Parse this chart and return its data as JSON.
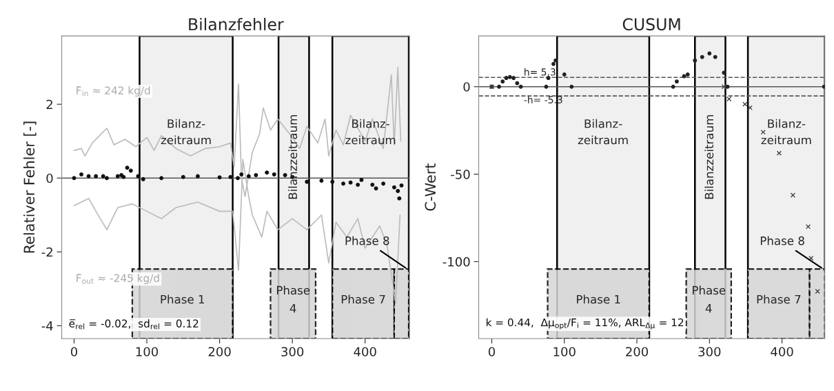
{
  "chart_data": [
    {
      "type": "scatter",
      "title": "Bilanzfehler",
      "ylabel": "Relativer Fehler [-]",
      "xlim": [
        -17,
        461
      ],
      "ylim": [
        -4.35,
        3.85
      ],
      "xticks": [
        0,
        100,
        200,
        300,
        400
      ],
      "yticks": [
        -4,
        -2,
        0,
        2
      ],
      "grid": false,
      "series": [
        {
          "type": "line",
          "color": "#bbbbbb",
          "x": [
            0,
            10,
            15,
            25,
            45,
            55,
            70,
            85,
            100,
            110,
            120,
            140,
            160,
            180,
            200,
            215,
            220,
            226,
            230,
            235,
            245,
            255,
            260,
            270,
            280,
            300,
            310,
            320,
            335,
            345,
            350,
            360,
            370,
            380,
            400,
            410,
            425,
            436,
            440,
            445,
            449
          ],
          "values": [
            0.75,
            0.8,
            0.6,
            0.95,
            1.35,
            0.9,
            1.05,
            0.85,
            1.1,
            0.75,
            1.15,
            0.8,
            0.6,
            0.8,
            0.85,
            0.95,
            0.3,
            2.55,
            0,
            -0.5,
            0.7,
            1.2,
            1.9,
            1.3,
            1.6,
            1.1,
            0.8,
            1.4,
            0.95,
            1.6,
            0.6,
            1.3,
            0.9,
            1.7,
            1.0,
            1.6,
            0.8,
            2.8,
            0.9,
            3.0,
            1.0
          ]
        },
        {
          "type": "line",
          "color": "#bbbbbb",
          "x": [
            0,
            20,
            30,
            45,
            60,
            80,
            100,
            120,
            140,
            170,
            200,
            218,
            226,
            232,
            240,
            245,
            258,
            265,
            280,
            300,
            320,
            340,
            350,
            360,
            375,
            390,
            400,
            420,
            430,
            442,
            448
          ],
          "values": [
            -0.75,
            -0.55,
            -0.9,
            -1.4,
            -0.8,
            -0.7,
            -0.9,
            -1.1,
            -0.8,
            -0.65,
            -0.9,
            -0.9,
            -2.5,
            0.5,
            -0.5,
            -1.0,
            -1.6,
            -0.9,
            -1.4,
            -1.1,
            -1.4,
            -1.0,
            -2.3,
            -1.2,
            -1.6,
            -1.1,
            -1.9,
            -1.3,
            -1.8,
            -3.4,
            -1.0
          ]
        },
        {
          "color": "#111111",
          "marker": "circle",
          "x": [
            0,
            10,
            20,
            30,
            40,
            45,
            60,
            65,
            68,
            73,
            78,
            88,
            95,
            120,
            150,
            170,
            200,
            215,
            225,
            230,
            240,
            250,
            265,
            275,
            290,
            300,
            320,
            340,
            355,
            370,
            380,
            390,
            395,
            410,
            415,
            425,
            440,
            445,
            447,
            450
          ],
          "values": [
            0,
            0.1,
            0.05,
            0.05,
            0.05,
            0,
            0.05,
            0.08,
            0.03,
            0.28,
            0.2,
            0.05,
            -0.03,
            0,
            0.03,
            0.05,
            0.02,
            0.03,
            0,
            0.1,
            0.05,
            0.08,
            0.15,
            0.1,
            0.08,
            0.03,
            -0.1,
            -0.07,
            -0.1,
            -0.15,
            -0.12,
            -0.18,
            -0.05,
            -0.18,
            -0.28,
            -0.15,
            -0.25,
            -0.35,
            -0.55,
            -0.2
          ]
        }
      ],
      "ref_lines": [
        {
          "axis": "y",
          "value": 0,
          "color": "#555555"
        }
      ],
      "bands": [
        {
          "axis": "x",
          "from": 90,
          "to": 218,
          "label": "Bilanz-\nzeitraum",
          "color": "#f0f0f0"
        },
        {
          "axis": "x",
          "from": 281,
          "to": 323,
          "label": "Bilanzzeitraum",
          "color": "#f0f0f0"
        },
        {
          "axis": "x",
          "from": 355,
          "to": 460,
          "label": "Bilanz-\nzeitraum",
          "color": "#f0f0f0"
        },
        {
          "axis": "x",
          "from": 80,
          "to": 218,
          "label": "Phase 1",
          "color": "#d6d6d6"
        },
        {
          "axis": "x",
          "from": 270,
          "to": 332,
          "label": "Phase\n4",
          "color": "#d6d6d6"
        },
        {
          "axis": "x",
          "from": 355,
          "to": 440,
          "label": "Phase 7",
          "color": "#d6d6d6"
        },
        {
          "axis": "x",
          "from": 440,
          "to": 460,
          "label": "Phase 8",
          "color": "#d6d6d6"
        }
      ],
      "annotations": [
        "F̄$_{in}$ ≈ 242 kg/d",
        "F̄$_{out}$ ≈ -245 kg/d",
        "e̅$_{rel}$ = -0.02,  sd$_{rel}$ = 0.12"
      ]
    },
    {
      "type": "scatter",
      "title": "CUSUM",
      "ylabel": "C-Wert",
      "xlim": [
        -18,
        459
      ],
      "ylim": [
        -144,
        29
      ],
      "xticks": [
        0,
        100,
        200,
        300,
        400
      ],
      "yticks": [
        -100,
        -50,
        0
      ],
      "grid": false,
      "series": [
        {
          "color": "#222222",
          "marker": "circle",
          "x": [
            0,
            10,
            15,
            20,
            25,
            30,
            35,
            40,
            75,
            78,
            85,
            88,
            100,
            110,
            250,
            255,
            265,
            270,
            280,
            290,
            300,
            308,
            320,
            325,
            458
          ],
          "values": [
            0,
            0,
            3,
            5,
            5.5,
            5,
            2,
            0,
            0,
            5,
            13,
            15,
            7,
            0,
            0,
            3,
            6,
            7,
            15,
            17,
            19,
            17,
            8,
            0,
            0
          ]
        },
        {
          "color": "#444444",
          "marker": "cross",
          "x": [
            0,
            320,
            327,
            349,
            356,
            374,
            396,
            415,
            436,
            440,
            449
          ],
          "values": [
            0,
            0,
            -7,
            -10,
            -12,
            -26,
            -38,
            -62,
            -80,
            -98,
            -117
          ]
        }
      ],
      "ref_lines": [
        {
          "axis": "y",
          "value": 0,
          "color": "#555555"
        },
        {
          "axis": "y",
          "value": 5.3,
          "label": "h= 5.3",
          "color": "#555555",
          "line_style": "dashed"
        },
        {
          "axis": "y",
          "value": -5.3,
          "label": "-h= -5.3",
          "color": "#555555",
          "line_style": "dashed"
        }
      ],
      "bands": [
        {
          "axis": "x",
          "from": 90,
          "to": 217,
          "label": "Bilanz-\nzeitraum",
          "color": "#f0f0f0"
        },
        {
          "axis": "x",
          "from": 280,
          "to": 322,
          "label": "Bilanzzeitraum",
          "color": "#f0f0f0"
        },
        {
          "axis": "x",
          "from": 353,
          "to": 459,
          "label": "Bilanz-\nzeitraum",
          "color": "#f0f0f0"
        },
        {
          "axis": "x",
          "from": 77,
          "to": 217,
          "label": "Phase 1",
          "color": "#d6d6d6"
        },
        {
          "axis": "x",
          "from": 268,
          "to": 330,
          "label": "Phase\n4",
          "color": "#d6d6d6"
        },
        {
          "axis": "x",
          "from": 353,
          "to": 438,
          "label": "Phase 7",
          "color": "#d6d6d6"
        },
        {
          "axis": "x",
          "from": 438,
          "to": 459,
          "label": "Phase 8",
          "color": "#d6d6d6"
        }
      ],
      "annotations": [
        "k = 0.44,  Δμ$_{opt}$/F̄$_{i}$ = 11%, ARL$_{Δμ}$ = 12"
      ]
    }
  ]
}
